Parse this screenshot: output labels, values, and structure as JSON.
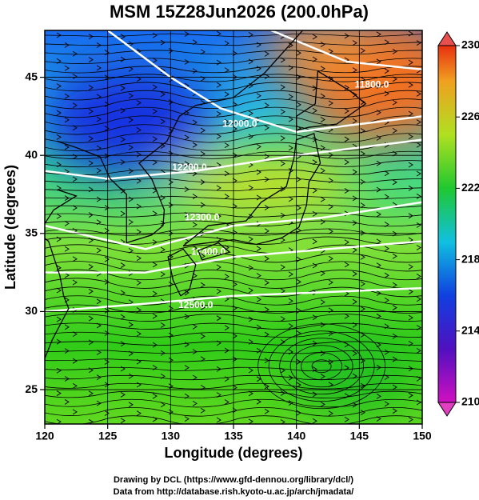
{
  "chart_data": {
    "type": "map",
    "title": "MSM 15Z28Jun2026 (200.0hPa)",
    "x_label": "Longitude (degrees)",
    "y_label": "Latitude  (degrees)",
    "xlim": [
      120,
      150
    ],
    "ylim": [
      22.8,
      48
    ],
    "xticks": [
      120,
      125,
      130,
      135,
      140,
      145,
      150
    ],
    "yticks": [
      25,
      30,
      35,
      40,
      45
    ],
    "grid": true,
    "colorbar": {
      "lim": [
        210,
        230
      ],
      "ticks": [
        210,
        214,
        218,
        222,
        226,
        230
      ]
    },
    "contour_labels": [
      "11800.0",
      "12000.0",
      "12200.0",
      "12300.0",
      "12400.0",
      "12500.0"
    ],
    "credits": [
      "Drawing by DCL (https://www.gfd-dennou.org/library/dcl/)",
      "Data from http://database.rish.kyoto-u.ac.jp/arch/jmadata/"
    ]
  }
}
